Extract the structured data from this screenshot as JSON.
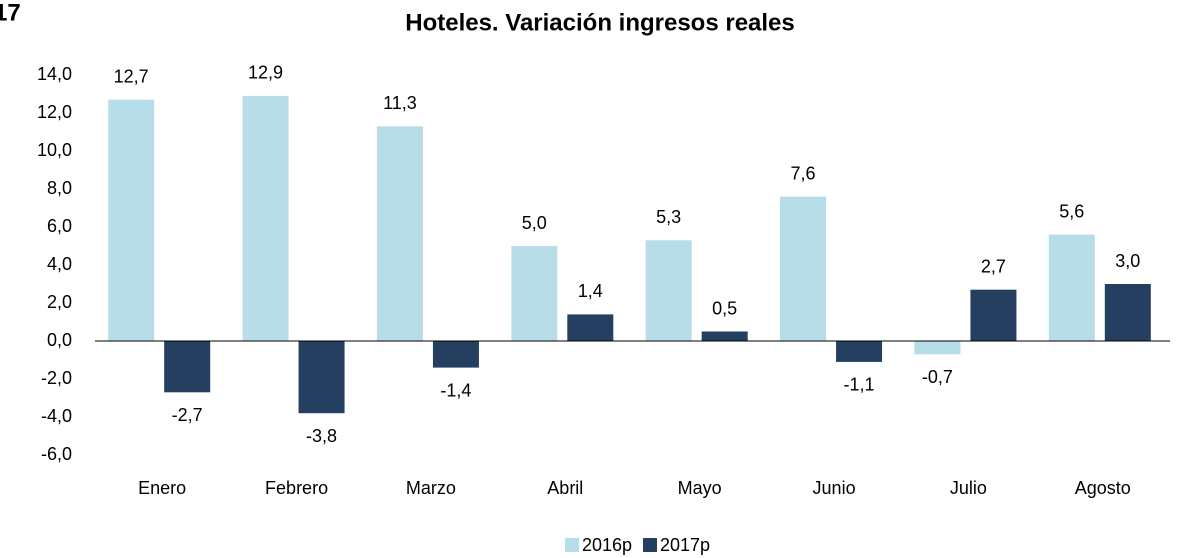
{
  "chart_data": {
    "type": "bar",
    "figure_number": "17",
    "title": "Hoteles. Variación ingresos reales",
    "categories": [
      "Enero",
      "Febrero",
      "Marzo",
      "Abril",
      "Mayo",
      "Junio",
      "Julio",
      "Agosto"
    ],
    "series": [
      {
        "name": "2016p",
        "color": "#b7dde8",
        "values": [
          12.7,
          12.9,
          11.3,
          5.0,
          5.3,
          7.6,
          -0.7,
          5.6
        ],
        "value_labels": [
          "12,7",
          "12,9",
          "11,3",
          "5,0",
          "5,3",
          "7,6",
          "-0,7",
          "5,6"
        ]
      },
      {
        "name": "2017p",
        "color": "#243f60",
        "values": [
          -2.7,
          -3.8,
          -1.4,
          1.4,
          0.5,
          -1.1,
          2.7,
          3.0
        ],
        "value_labels": [
          "-2,7",
          "-3,8",
          "-1,4",
          "1,4",
          "0,5",
          "-1,1",
          "2,7",
          "3,0"
        ]
      }
    ],
    "ylim": [
      -6,
      14
    ],
    "yticks": [
      {
        "value": -6,
        "label": "-6,0"
      },
      {
        "value": -4,
        "label": "-4,0"
      },
      {
        "value": -2,
        "label": "-2,0"
      },
      {
        "value": 0,
        "label": "0,0"
      },
      {
        "value": 2,
        "label": "2,0"
      },
      {
        "value": 4,
        "label": "4,0"
      },
      {
        "value": 6,
        "label": "6,0"
      },
      {
        "value": 8,
        "label": "8,0"
      },
      {
        "value": 10,
        "label": "10,0"
      },
      {
        "value": 12,
        "label": "12,0"
      },
      {
        "value": 14,
        "label": "14,0"
      }
    ],
    "grid": false,
    "legend": "bottom"
  }
}
